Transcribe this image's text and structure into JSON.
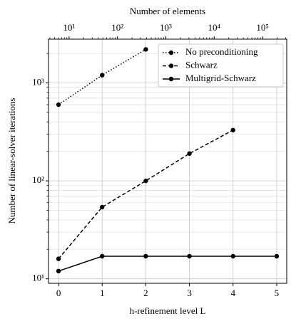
{
  "chart_data": {
    "type": "line",
    "xlabel": "h-refinement level L",
    "ylabel": "Number of linear-solver iterations",
    "x2label": "Number of elements",
    "x": [
      0,
      1,
      2,
      3,
      4,
      5
    ],
    "series": [
      {
        "name": "No preconditioning",
        "color": "#000000",
        "linestyle": "dotted",
        "values": [
          600,
          1200,
          2200,
          null,
          null,
          null
        ]
      },
      {
        "name": "Schwarz",
        "color": "#000000",
        "linestyle": "dashed",
        "values": [
          16,
          54,
          100,
          190,
          330,
          null
        ]
      },
      {
        "name": "Multigrid-Schwarz",
        "color": "#000000",
        "linestyle": "solid",
        "values": [
          12,
          17,
          17,
          17,
          17,
          17
        ]
      }
    ],
    "xlim": [
      -0.23,
      5.23
    ],
    "xticks": [
      0,
      1,
      2,
      3,
      4,
      5
    ],
    "ylim": [
      9,
      2800
    ],
    "yscale": "log",
    "yticks": [
      {
        "value": 10,
        "label": "10¹"
      },
      {
        "value": 100,
        "label": "10²"
      },
      {
        "value": 1000,
        "label": "10³"
      }
    ],
    "x2lim": [
      3.75,
      316000
    ],
    "x2scale": "log",
    "x2ticks": [
      {
        "value": 10,
        "label": "10¹"
      },
      {
        "value": 100,
        "label": "10²"
      },
      {
        "value": 1000,
        "label": "10³"
      },
      {
        "value": 10000,
        "label": "10⁴"
      },
      {
        "value": 100000,
        "label": "10⁵"
      }
    ],
    "grid": true,
    "legend": "upper right"
  }
}
